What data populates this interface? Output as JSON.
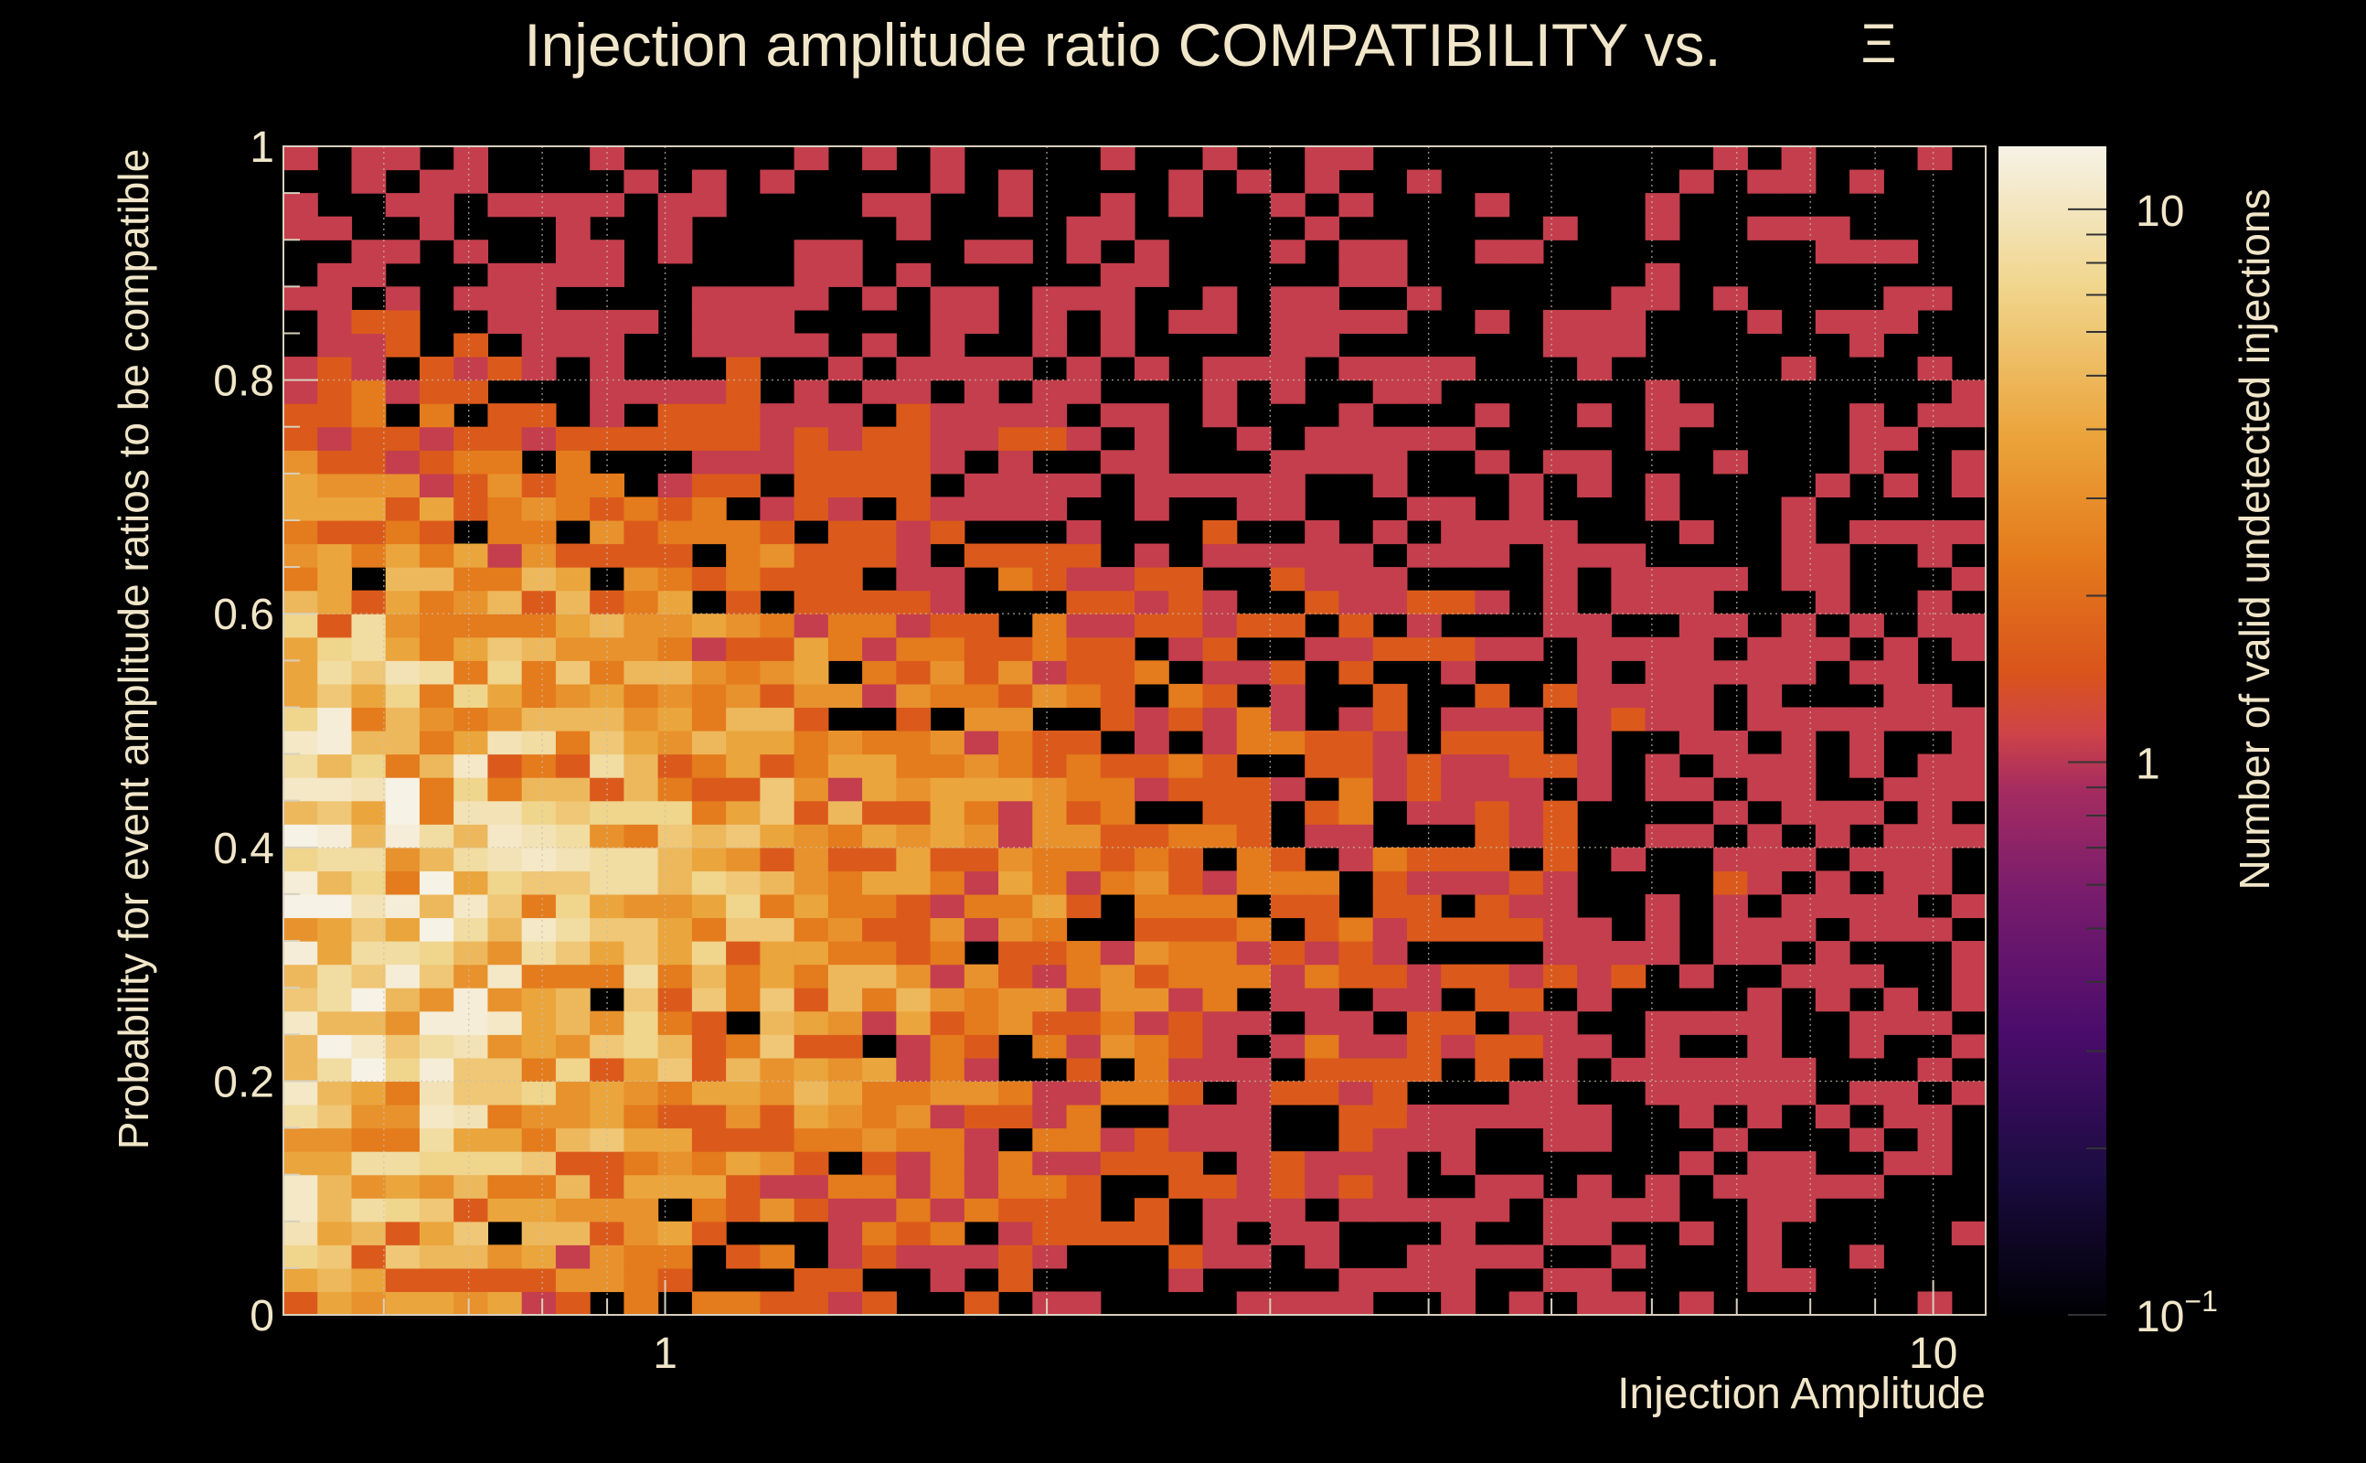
{
  "chart_data": {
    "type": "heatmap",
    "title": "Injection amplitude ratio COMPATIBILITY vs.",
    "title_symbol": "Ξ",
    "xlabel": "Injection Amplitude",
    "ylabel": "Probability for event amplitude ratios to be compatible",
    "zlabel": "Number of valid undetected injections",
    "x_scale": "log",
    "xlim": [
      0.5,
      11
    ],
    "ylim": [
      0,
      1
    ],
    "x_ticks": [
      {
        "value": 1,
        "label": "1"
      },
      {
        "value": 10,
        "label": "10"
      }
    ],
    "y_ticks": [
      {
        "value": 0,
        "label": "0"
      },
      {
        "value": 0.2,
        "label": "0.2"
      },
      {
        "value": 0.4,
        "label": "0.4"
      },
      {
        "value": 0.6,
        "label": "0.6"
      },
      {
        "value": 0.8,
        "label": "0.8"
      },
      {
        "value": 1,
        "label": "1"
      }
    ],
    "z_scale": "log",
    "zlim": [
      0.1,
      13
    ],
    "z_ticks": [
      {
        "value": 0.1,
        "label": "10",
        "sup": "−1"
      },
      {
        "value": 1,
        "label": "1",
        "sup": ""
      },
      {
        "value": 10,
        "label": "10",
        "sup": ""
      }
    ],
    "n_x_bins": 50,
    "n_y_bins": 50,
    "bin_pattern": "count density peaks near amplitude 0.5–1.5 and probability 0.2–0.5, falling toward high amplitude; empty bins (0 counts) render black",
    "colormap": [
      "#000004",
      "#1b0c41",
      "#4a0c6b",
      "#781c6d",
      "#a52c60",
      "#cf4446",
      "#d9541b",
      "#e47b1c",
      "#eba33a",
      "#f0d58c",
      "#f6f2e6"
    ],
    "grid": true
  }
}
